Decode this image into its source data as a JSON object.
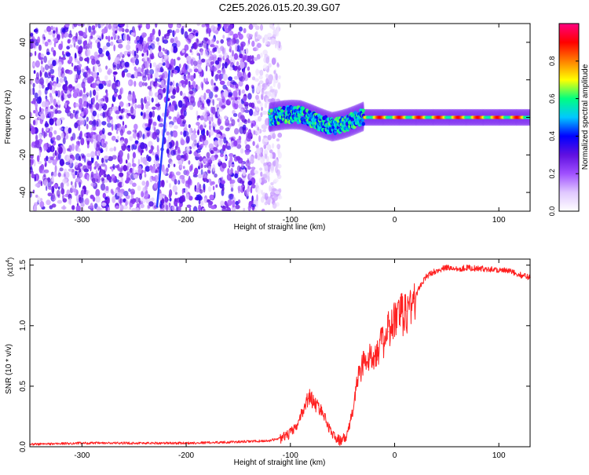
{
  "title": "C2E5.2026.015.20.39.G07",
  "chart_data": [
    {
      "type": "heatmap",
      "xlabel": "Height of straight line (km)",
      "ylabel": "Frequency (Hz)",
      "xlim": [
        -350,
        130
      ],
      "ylim": [
        -50,
        50
      ],
      "xticks": [
        -300,
        -200,
        -100,
        0,
        100
      ],
      "yticks": [
        -40,
        -20,
        0,
        20,
        40
      ],
      "grid": false,
      "colorbar": {
        "label": "Normalized spectral amplitude",
        "range": [
          0,
          1
        ],
        "ticks": [
          "0.0",
          "0.2",
          "0.4",
          "0.6",
          "0.8"
        ],
        "colors": [
          "#ffffff",
          "#e0c8ff",
          "#a050ff",
          "#6010e0",
          "#0000ff",
          "#00c8ff",
          "#00ff80",
          "#ffff00",
          "#ff8000",
          "#ff0000",
          "#ff0080"
        ]
      },
      "features": {
        "signal_band": {
          "x_start": -120,
          "x_end": 130,
          "center_freq_hz": 0,
          "peak_amplitude": 0.9
        },
        "noise_region": {
          "x_start": -350,
          "x_end": -110,
          "mean_amplitude": 0.2
        },
        "diagonal_streak": {
          "x_start": -228,
          "x_end": -216,
          "freq_start_hz": -48,
          "freq_end_hz": 25
        }
      }
    },
    {
      "type": "line",
      "xlabel": "Height of straight line (km)",
      "ylabel": "SNR (10 * v/v)",
      "yscale_label": "(x10",
      "yscale_exp": "4",
      "xlim": [
        -350,
        130
      ],
      "ylim": [
        0,
        1.55
      ],
      "xticks": [
        -300,
        -200,
        -100,
        0,
        100
      ],
      "yticks": [
        "0.0",
        "0.5",
        "1.0",
        "1.5"
      ],
      "grid": false,
      "series": [
        {
          "name": "SNR",
          "color": "#ff2020",
          "x": [
            -350,
            -300,
            -250,
            -200,
            -150,
            -120,
            -105,
            -95,
            -88,
            -82,
            -76,
            -70,
            -64,
            -58,
            -52,
            -46,
            -40,
            -36,
            -30,
            -24,
            -18,
            -12,
            -6,
            0,
            6,
            12,
            18,
            24,
            30,
            36,
            42,
            50,
            60,
            70,
            80,
            90,
            100,
            110,
            120,
            130
          ],
          "values": [
            0.02,
            0.03,
            0.03,
            0.03,
            0.04,
            0.05,
            0.08,
            0.15,
            0.3,
            0.42,
            0.35,
            0.3,
            0.18,
            0.08,
            0.05,
            0.08,
            0.3,
            0.55,
            0.7,
            0.72,
            0.8,
            0.85,
            0.95,
            1.05,
            1.08,
            1.12,
            1.2,
            1.32,
            1.4,
            1.44,
            1.46,
            1.48,
            1.47,
            1.48,
            1.47,
            1.47,
            1.46,
            1.45,
            1.42,
            1.4
          ]
        }
      ]
    }
  ]
}
